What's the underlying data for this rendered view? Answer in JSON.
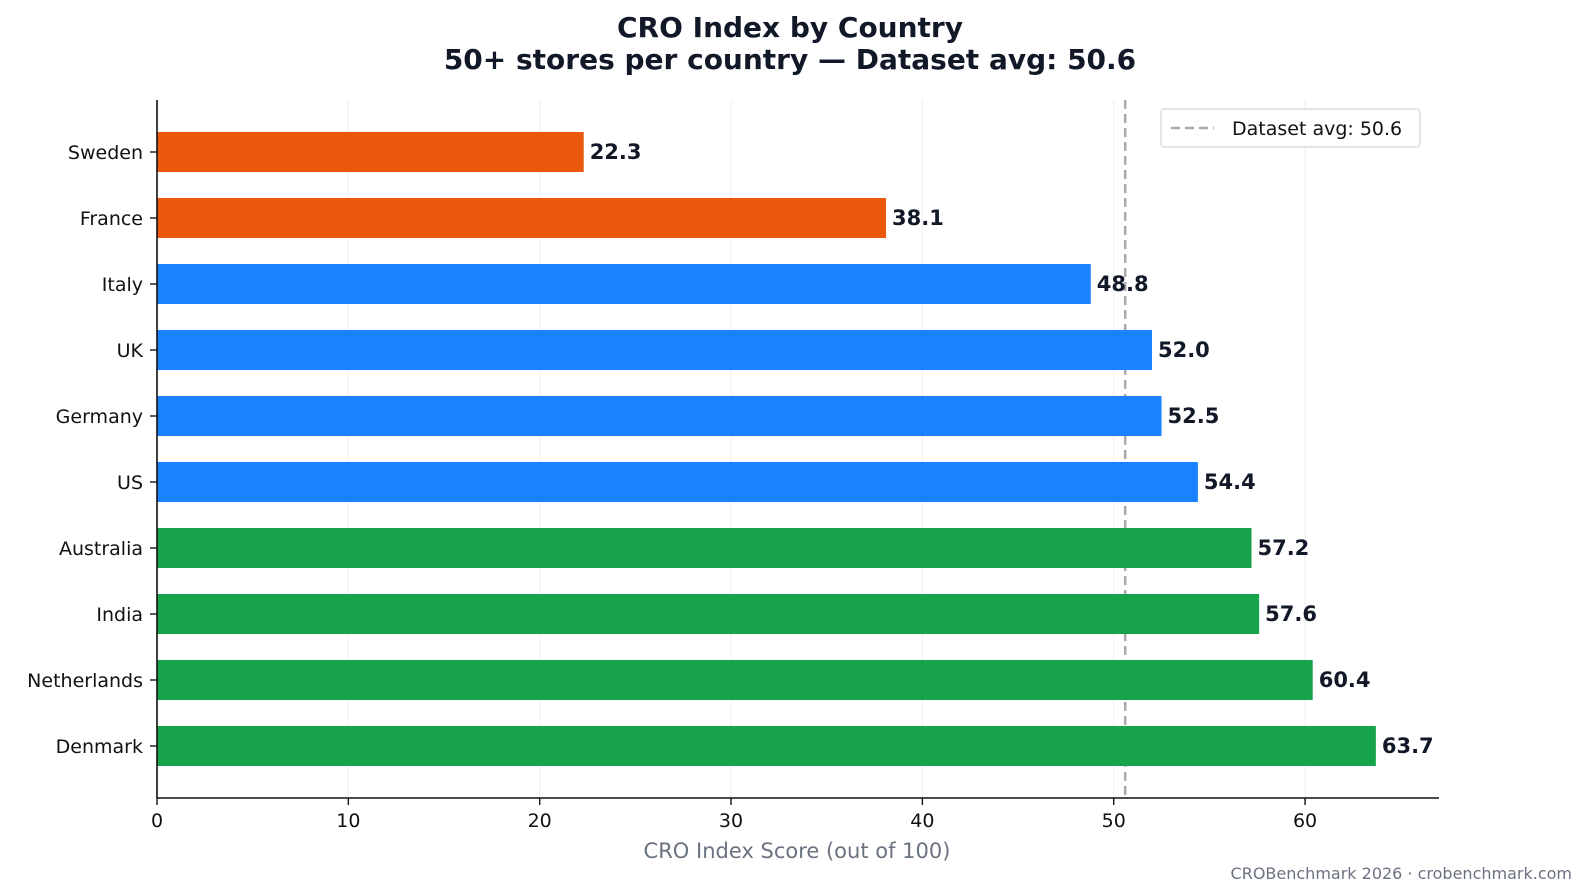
{
  "chart_data": {
    "type": "bar",
    "orientation": "horizontal",
    "title": "CRO Index by Country",
    "subtitle": "50+ stores per country — Dataset avg: 50.6",
    "xlabel": "CRO Index Score (out of 100)",
    "ylabel": "",
    "xlim": [
      0,
      67
    ],
    "xticks": [
      0,
      10,
      20,
      30,
      40,
      50,
      60
    ],
    "grid": "vertical",
    "categories": [
      "Sweden",
      "France",
      "Italy",
      "UK",
      "Germany",
      "US",
      "Australia",
      "India",
      "Netherlands",
      "Denmark"
    ],
    "values": [
      22.3,
      38.1,
      48.8,
      52.0,
      52.5,
      54.4,
      57.2,
      57.6,
      60.4,
      63.7
    ],
    "value_labels": [
      "22.3",
      "38.1",
      "48.8",
      "52.0",
      "52.5",
      "54.4",
      "57.2",
      "57.6",
      "60.4",
      "63.7"
    ],
    "bar_colors": [
      "#ea580c",
      "#ea580c",
      "#1a82ff",
      "#1a82ff",
      "#1a82ff",
      "#1a82ff",
      "#16a34a",
      "#16a34a",
      "#16a34a",
      "#16a34a"
    ],
    "reference_line": {
      "value": 50.6,
      "label": "Dataset avg: 50.6",
      "color": "#aaaaaa",
      "style": "dashed"
    },
    "legend": {
      "position": "top-right",
      "entries": [
        "Dataset avg: 50.6"
      ]
    }
  },
  "footer": "CROBenchmark 2026 · crobenchmark.com"
}
